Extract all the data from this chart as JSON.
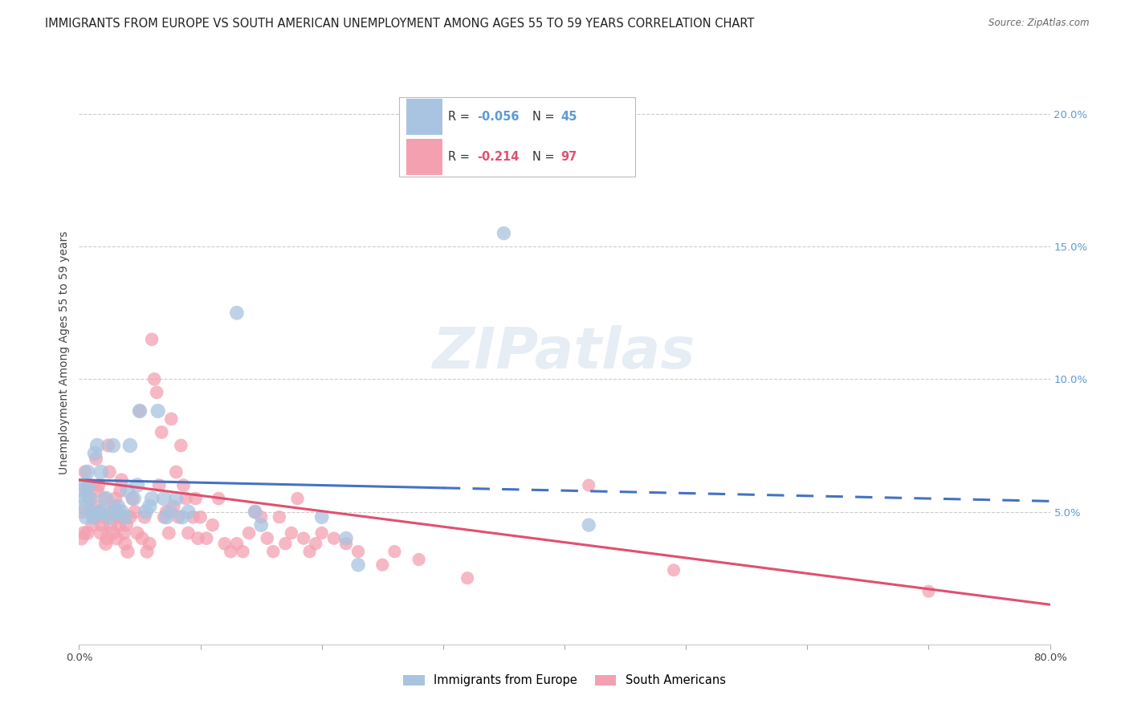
{
  "title": "IMMIGRANTS FROM EUROPE VS SOUTH AMERICAN UNEMPLOYMENT AMONG AGES 55 TO 59 YEARS CORRELATION CHART",
  "source": "Source: ZipAtlas.com",
  "ylabel": "Unemployment Among Ages 55 to 59 years",
  "xlim": [
    0.0,
    0.8
  ],
  "ylim": [
    0.0,
    0.22
  ],
  "xticks": [
    0.0,
    0.1,
    0.2,
    0.3,
    0.4,
    0.5,
    0.6,
    0.7,
    0.8
  ],
  "xticklabels": [
    "0.0%",
    "",
    "",
    "",
    "",
    "",
    "",
    "",
    "80.0%"
  ],
  "yticks_right": [
    0.0,
    0.05,
    0.1,
    0.15,
    0.2
  ],
  "yticklabels_right": [
    "",
    "5.0%",
    "10.0%",
    "15.0%",
    "20.0%"
  ],
  "blue_color": "#a8c4e0",
  "pink_color": "#f4a0b0",
  "blue_line_color": "#4472C4",
  "pink_line_color": "#E05070",
  "blue_scatter": [
    [
      0.002,
      0.058
    ],
    [
      0.003,
      0.052
    ],
    [
      0.004,
      0.06
    ],
    [
      0.005,
      0.055
    ],
    [
      0.006,
      0.048
    ],
    [
      0.007,
      0.065
    ],
    [
      0.008,
      0.06
    ],
    [
      0.009,
      0.055
    ],
    [
      0.01,
      0.05
    ],
    [
      0.012,
      0.048
    ],
    [
      0.013,
      0.072
    ],
    [
      0.015,
      0.075
    ],
    [
      0.017,
      0.05
    ],
    [
      0.018,
      0.065
    ],
    [
      0.02,
      0.05
    ],
    [
      0.022,
      0.055
    ],
    [
      0.025,
      0.048
    ],
    [
      0.028,
      0.075
    ],
    [
      0.03,
      0.05
    ],
    [
      0.032,
      0.052
    ],
    [
      0.035,
      0.05
    ],
    [
      0.038,
      0.048
    ],
    [
      0.04,
      0.058
    ],
    [
      0.042,
      0.075
    ],
    [
      0.045,
      0.055
    ],
    [
      0.048,
      0.06
    ],
    [
      0.05,
      0.088
    ],
    [
      0.055,
      0.05
    ],
    [
      0.058,
      0.052
    ],
    [
      0.06,
      0.055
    ],
    [
      0.065,
      0.088
    ],
    [
      0.07,
      0.055
    ],
    [
      0.072,
      0.048
    ],
    [
      0.075,
      0.05
    ],
    [
      0.08,
      0.055
    ],
    [
      0.085,
      0.048
    ],
    [
      0.09,
      0.05
    ],
    [
      0.13,
      0.125
    ],
    [
      0.145,
      0.05
    ],
    [
      0.15,
      0.045
    ],
    [
      0.2,
      0.048
    ],
    [
      0.22,
      0.04
    ],
    [
      0.23,
      0.03
    ],
    [
      0.35,
      0.155
    ],
    [
      0.42,
      0.045
    ]
  ],
  "pink_scatter": [
    [
      0.002,
      0.04
    ],
    [
      0.003,
      0.05
    ],
    [
      0.004,
      0.042
    ],
    [
      0.005,
      0.065
    ],
    [
      0.006,
      0.058
    ],
    [
      0.007,
      0.042
    ],
    [
      0.008,
      0.06
    ],
    [
      0.009,
      0.055
    ],
    [
      0.01,
      0.05
    ],
    [
      0.011,
      0.045
    ],
    [
      0.012,
      0.048
    ],
    [
      0.013,
      0.052
    ],
    [
      0.014,
      0.07
    ],
    [
      0.015,
      0.058
    ],
    [
      0.016,
      0.06
    ],
    [
      0.017,
      0.05
    ],
    [
      0.018,
      0.042
    ],
    [
      0.019,
      0.045
    ],
    [
      0.02,
      0.048
    ],
    [
      0.021,
      0.055
    ],
    [
      0.022,
      0.038
    ],
    [
      0.023,
      0.04
    ],
    [
      0.024,
      0.075
    ],
    [
      0.025,
      0.065
    ],
    [
      0.026,
      0.045
    ],
    [
      0.027,
      0.05
    ],
    [
      0.028,
      0.042
    ],
    [
      0.029,
      0.052
    ],
    [
      0.03,
      0.055
    ],
    [
      0.031,
      0.04
    ],
    [
      0.032,
      0.048
    ],
    [
      0.033,
      0.045
    ],
    [
      0.034,
      0.058
    ],
    [
      0.035,
      0.062
    ],
    [
      0.036,
      0.048
    ],
    [
      0.037,
      0.042
    ],
    [
      0.038,
      0.038
    ],
    [
      0.039,
      0.045
    ],
    [
      0.04,
      0.035
    ],
    [
      0.042,
      0.048
    ],
    [
      0.044,
      0.055
    ],
    [
      0.046,
      0.05
    ],
    [
      0.048,
      0.042
    ],
    [
      0.05,
      0.088
    ],
    [
      0.052,
      0.04
    ],
    [
      0.054,
      0.048
    ],
    [
      0.056,
      0.035
    ],
    [
      0.058,
      0.038
    ],
    [
      0.06,
      0.115
    ],
    [
      0.062,
      0.1
    ],
    [
      0.064,
      0.095
    ],
    [
      0.066,
      0.06
    ],
    [
      0.068,
      0.08
    ],
    [
      0.07,
      0.048
    ],
    [
      0.072,
      0.05
    ],
    [
      0.074,
      0.042
    ],
    [
      0.076,
      0.085
    ],
    [
      0.078,
      0.052
    ],
    [
      0.08,
      0.065
    ],
    [
      0.082,
      0.048
    ],
    [
      0.084,
      0.075
    ],
    [
      0.086,
      0.06
    ],
    [
      0.088,
      0.055
    ],
    [
      0.09,
      0.042
    ],
    [
      0.094,
      0.048
    ],
    [
      0.096,
      0.055
    ],
    [
      0.098,
      0.04
    ],
    [
      0.1,
      0.048
    ],
    [
      0.105,
      0.04
    ],
    [
      0.11,
      0.045
    ],
    [
      0.115,
      0.055
    ],
    [
      0.12,
      0.038
    ],
    [
      0.125,
      0.035
    ],
    [
      0.13,
      0.038
    ],
    [
      0.135,
      0.035
    ],
    [
      0.14,
      0.042
    ],
    [
      0.145,
      0.05
    ],
    [
      0.15,
      0.048
    ],
    [
      0.155,
      0.04
    ],
    [
      0.16,
      0.035
    ],
    [
      0.165,
      0.048
    ],
    [
      0.17,
      0.038
    ],
    [
      0.175,
      0.042
    ],
    [
      0.18,
      0.055
    ],
    [
      0.185,
      0.04
    ],
    [
      0.19,
      0.035
    ],
    [
      0.195,
      0.038
    ],
    [
      0.2,
      0.042
    ],
    [
      0.21,
      0.04
    ],
    [
      0.22,
      0.038
    ],
    [
      0.23,
      0.035
    ],
    [
      0.25,
      0.03
    ],
    [
      0.26,
      0.035
    ],
    [
      0.28,
      0.032
    ],
    [
      0.32,
      0.025
    ],
    [
      0.42,
      0.06
    ],
    [
      0.49,
      0.028
    ],
    [
      0.7,
      0.02
    ]
  ],
  "blue_trend_solid": {
    "x_start": 0.0,
    "x_end": 0.3,
    "y_start": 0.062,
    "y_end": 0.059
  },
  "blue_trend_dashed": {
    "x_start": 0.3,
    "x_end": 0.8,
    "y_start": 0.059,
    "y_end": 0.054
  },
  "pink_trend": {
    "x_start": 0.0,
    "x_end": 0.8,
    "y_start": 0.062,
    "y_end": 0.015
  },
  "background_color": "#ffffff",
  "title_fontsize": 10.5,
  "axis_label_fontsize": 10,
  "tick_fontsize": 9.5
}
